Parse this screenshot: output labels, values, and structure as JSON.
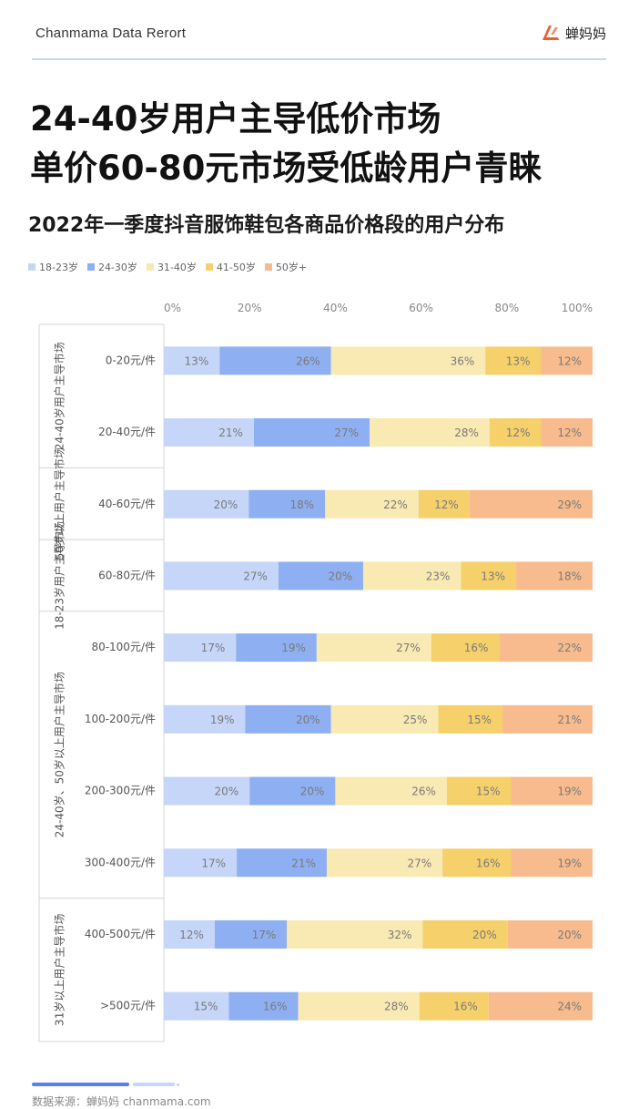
{
  "header": {
    "report_name": "Chanmama Data Rerort",
    "brand_name": "蝉妈妈"
  },
  "headline": {
    "line1": "24-40岁用户主导低价市场",
    "line2": "单价60-80元市场受低龄用户青睐"
  },
  "source": "数据来源：蝉妈妈 chanmama.com",
  "colors": {
    "brand": "#f15a2b",
    "series": [
      "#c5d6f8",
      "#8eaff2",
      "#f9e9b3",
      "#f5d06b",
      "#f7bb8e"
    ]
  },
  "chart_data": {
    "type": "bar",
    "orientation": "horizontal",
    "stacked": "percent",
    "title": "2022年一季度抖音服饰鞋包各商品价格段的用户分布",
    "xlim": [
      0,
      100
    ],
    "x_ticks": [
      "0%",
      "20%",
      "40%",
      "60%",
      "80%",
      "100%"
    ],
    "legend_position": "top-left",
    "categories": [
      "0-20元/件",
      "20-40元/件",
      "40-60元/件",
      "60-80元/件",
      "80-100元/件",
      "100-200元/件",
      "200-300元/件",
      "300-400元/件",
      "400-500元/件",
      ">500元/件"
    ],
    "groups": [
      {
        "label": "24-40岁用户主导市场",
        "categories": [
          "0-20元/件",
          "20-40元/件"
        ]
      },
      {
        "label": "50岁以上用户主导市场",
        "categories": [
          "40-60元/件"
        ]
      },
      {
        "label": "18-23岁用户主导市场",
        "categories": [
          "60-80元/件"
        ]
      },
      {
        "label": "24-40岁、50岁以上用户主导市场",
        "categories": [
          "80-100元/件",
          "100-200元/件",
          "200-300元/件",
          "300-400元/件"
        ]
      },
      {
        "label": "31岁以上用户主导市场",
        "categories": [
          "400-500元/件",
          ">500元/件"
        ]
      }
    ],
    "series": [
      {
        "name": "18-23岁",
        "values": [
          13,
          21,
          20,
          27,
          17,
          19,
          20,
          17,
          12,
          15
        ]
      },
      {
        "name": "24-30岁",
        "values": [
          26,
          27,
          18,
          20,
          19,
          20,
          20,
          21,
          17,
          16
        ]
      },
      {
        "name": "31-40岁",
        "values": [
          36,
          28,
          22,
          23,
          27,
          25,
          26,
          27,
          32,
          28
        ]
      },
      {
        "name": "41-50岁",
        "values": [
          13,
          12,
          12,
          13,
          16,
          15,
          15,
          16,
          20,
          16
        ]
      },
      {
        "name": "50岁+",
        "values": [
          12,
          12,
          29,
          18,
          22,
          21,
          19,
          19,
          20,
          24
        ]
      }
    ]
  }
}
